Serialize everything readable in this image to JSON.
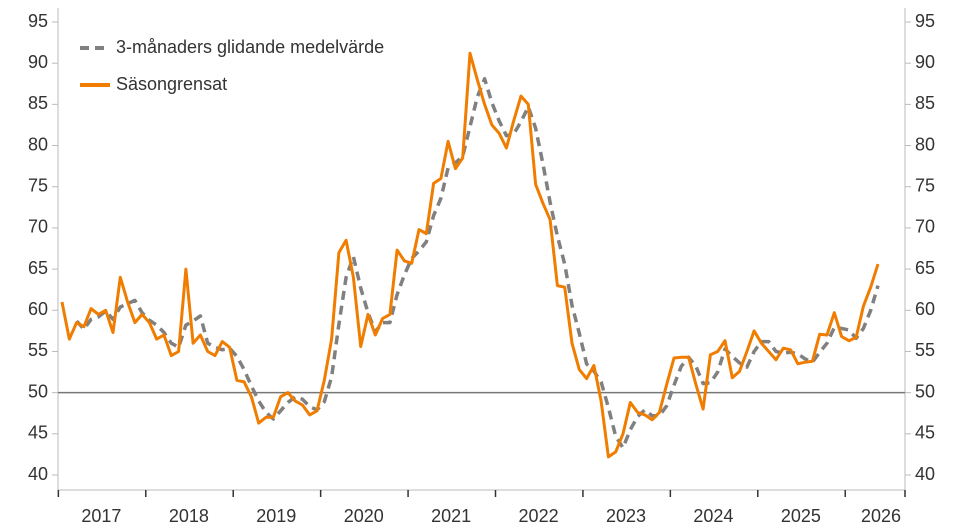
{
  "chart_data": {
    "type": "line",
    "categories": [
      null,
      null,
      null,
      null,
      null,
      "2017",
      null,
      null,
      null,
      null,
      null,
      null,
      null,
      null,
      null,
      null,
      null,
      "2018",
      null,
      null,
      null,
      null,
      null,
      null,
      null,
      null,
      null,
      null,
      null,
      "2019",
      null,
      null,
      null,
      null,
      null,
      null,
      null,
      null,
      null,
      null,
      null,
      "2020",
      null,
      null,
      null,
      null,
      null,
      null,
      null,
      null,
      null,
      null,
      null,
      "2021",
      null,
      null,
      null,
      null,
      null,
      null,
      null,
      null,
      null,
      null,
      null,
      "2022",
      null,
      null,
      null,
      null,
      null,
      null,
      null,
      null,
      null,
      null,
      null,
      "2023",
      null,
      null,
      null,
      null,
      null,
      null,
      null,
      null,
      null,
      null,
      null,
      "2024",
      null,
      null,
      null,
      null,
      null,
      null,
      null,
      null,
      null,
      null,
      null,
      "2025",
      null,
      null,
      null,
      null,
      null,
      null,
      null,
      null,
      null,
      null,
      "2026"
    ],
    "series": [
      {
        "name": "3-månaders glidande medelvärde",
        "color": "#808080",
        "dashed": true,
        "values": [
          null,
          null,
          58.7,
          57.7,
          58.9,
          59.2,
          59.9,
          58.9,
          60.4,
          60.8,
          61.2,
          59.7,
          58.8,
          58.2,
          57.3,
          56,
          55.5,
          58.2,
          58.7,
          59.3,
          56,
          55.5,
          55.2,
          55.4,
          54.4,
          52.8,
          50.8,
          49,
          47.6,
          46.8,
          47.8,
          48.8,
          49.5,
          49.2,
          48.3,
          47.9,
          48.9,
          51.9,
          58.3,
          64,
          66.5,
          62.7,
          59.7,
          57.4,
          58.5,
          58.5,
          61.9,
          64.3,
          66.3,
          67.2,
          68.3,
          71.5,
          73.6,
          77.3,
          77.9,
          78.7,
          82.3,
          85.9,
          88.1,
          85.2,
          83,
          81.2,
          81.4,
          82.9,
          84.7,
          82.1,
          77.8,
          73.1,
          69,
          65.6,
          60.6,
          57.2,
          53.5,
          52.6,
          51.3,
          48.2,
          44.7,
          43.3,
          45.5,
          47.1,
          47.9,
          47.2,
          47.2,
          48.4,
          50.9,
          53.2,
          54.3,
          53.2,
          51.1,
          51.2,
          52.5,
          55.3,
          54.4,
          53.6,
          53.1,
          55,
          56.2,
          56.2,
          55,
          54.8,
          54.9,
          54.7,
          54.1,
          53.7,
          54.9,
          56,
          57.9,
          57.8,
          57.6,
          56.6,
          57.8,
          60,
          63
        ]
      },
      {
        "name": "Säsongrensat",
        "color": "#f07d00",
        "values": [
          61,
          56.5,
          58.5,
          58,
          60.2,
          59.5,
          60,
          57.3,
          64,
          61,
          58.5,
          59.5,
          58.5,
          56.5,
          57,
          54.5,
          55,
          65,
          56,
          57,
          55,
          54.5,
          56.2,
          55.5,
          51.5,
          51.3,
          49.5,
          46.3,
          47,
          47,
          49.5,
          50,
          49,
          48.5,
          47.3,
          47.8,
          51.5,
          56.5,
          67,
          68.5,
          64,
          55.6,
          59.5,
          57,
          59,
          59.5,
          67.3,
          66,
          65.7,
          69.8,
          69.3,
          75.4,
          76,
          80.5,
          77.2,
          78.5,
          91.2,
          88,
          85,
          82.5,
          81.5,
          79.7,
          83,
          86,
          85,
          75.3,
          73,
          71,
          63,
          62.8,
          56,
          52.8,
          51.7,
          53.3,
          49,
          42.2,
          42.8,
          45,
          48.8,
          47.6,
          47.3,
          46.7,
          47.6,
          51,
          54.2,
          54.3,
          54.3,
          51,
          48,
          54.6,
          55,
          56.3,
          51.8,
          52.6,
          55,
          57.5,
          56,
          55,
          54,
          55.4,
          55.2,
          53.5,
          53.7,
          53.8,
          57.1,
          57,
          59.7,
          56.8,
          56.3,
          56.7,
          60.5,
          62.8,
          65.6
        ]
      }
    ],
    "ylim": [
      40,
      95
    ],
    "yticks": [
      40,
      45,
      50,
      55,
      60,
      65,
      70,
      75,
      80,
      85,
      90,
      95
    ],
    "y2lim": [
      40,
      95
    ],
    "y2ticks": [
      40,
      45,
      50,
      55,
      60,
      65,
      70,
      75,
      80,
      85,
      90,
      95
    ],
    "hline": 50,
    "legend": "upper left"
  }
}
